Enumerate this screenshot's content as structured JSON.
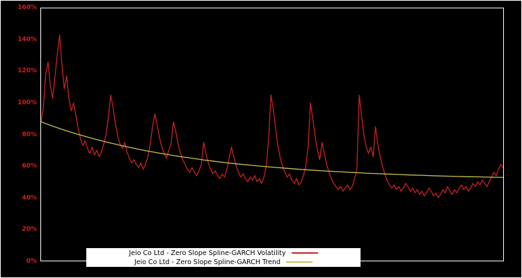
{
  "colors": {
    "background": "#000000",
    "frame": "#ffffff",
    "axis_label": "#cc2222",
    "volatility_line": "#cc2222",
    "trend_line": "#c8c050",
    "legend_bg": "#ffffff",
    "legend_text": "#000000"
  },
  "axis": {
    "y_ticks": [
      {
        "value": 0,
        "label": "0%"
      },
      {
        "value": 20,
        "label": "20%"
      },
      {
        "value": 40,
        "label": "40%"
      },
      {
        "value": 60,
        "label": "60%"
      },
      {
        "value": 80,
        "label": "80%"
      },
      {
        "value": 100,
        "label": "100%"
      },
      {
        "value": 120,
        "label": "120%"
      },
      {
        "value": 140,
        "label": "140%"
      },
      {
        "value": 160,
        "label": "160%"
      }
    ]
  },
  "legend": {
    "items": [
      {
        "label": "Jeio Co Ltd - Zero Slope Spline-GARCH Volatility",
        "color": "#cc2222"
      },
      {
        "label": "Jeio Co Ltd - Zero Slope Spline-GARCH Trend",
        "color": "#c8c050"
      }
    ]
  },
  "chart_data": {
    "type": "line",
    "title": "",
    "xlabel": "",
    "ylabel": "",
    "ylim": [
      0,
      160
    ],
    "y_tick_labels": [
      "0%",
      "20%",
      "40%",
      "60%",
      "80%",
      "100%",
      "120%",
      "140%",
      "160%"
    ],
    "grid": false,
    "legend_position": "bottom-left-inside",
    "series": [
      {
        "name": "Jeio Co Ltd - Zero Slope Spline-GARCH Volatility",
        "color": "#cc2222",
        "unit": "%",
        "values": [
          88,
          97,
          118,
          126,
          111,
          103,
          117,
          131,
          143,
          124,
          109,
          117,
          103,
          95,
          100,
          92,
          84,
          77,
          73,
          76,
          71,
          68,
          72,
          67,
          70,
          66,
          69,
          74,
          80,
          91,
          105,
          97,
          87,
          79,
          74,
          71,
          75,
          69,
          65,
          62,
          64,
          61,
          59,
          62,
          58,
          61,
          66,
          74,
          85,
          93,
          86,
          78,
          72,
          68,
          65,
          70,
          74,
          88,
          82,
          74,
          68,
          64,
          61,
          58,
          56,
          59,
          56,
          54,
          57,
          61,
          75,
          68,
          62,
          58,
          55,
          57,
          54,
          52,
          55,
          53,
          58,
          65,
          72,
          66,
          60,
          56,
          53,
          55,
          52,
          50,
          53,
          51,
          54,
          50,
          52,
          49,
          53,
          60,
          78,
          105,
          96,
          84,
          73,
          65,
          60,
          56,
          53,
          55,
          51,
          49,
          52,
          48,
          50,
          54,
          60,
          72,
          100,
          90,
          79,
          70,
          64,
          75,
          68,
          61,
          56,
          52,
          49,
          47,
          45,
          47,
          44,
          46,
          48,
          45,
          47,
          52,
          58,
          105,
          92,
          80,
          72,
          68,
          72,
          66,
          85,
          74,
          66,
          60,
          55,
          51,
          48,
          46,
          48,
          45,
          47,
          44,
          46,
          49,
          47,
          44,
          46,
          43,
          45,
          42,
          44,
          41,
          43,
          46,
          44,
          41,
          43,
          40,
          42,
          45,
          43,
          47,
          44,
          42,
          45,
          43,
          46,
          48,
          45,
          47,
          44,
          46,
          49,
          47,
          50,
          48,
          51,
          49,
          47,
          50,
          53,
          56,
          54,
          58,
          61,
          59
        ]
      },
      {
        "name": "Jeio Co Ltd - Zero Slope Spline-GARCH Trend",
        "color": "#c8c050",
        "unit": "%",
        "values": [
          88.0,
          85.3,
          82.8,
          80.5,
          78.4,
          76.4,
          74.6,
          72.9,
          71.3,
          69.8,
          68.5,
          67.2,
          66.0,
          65.0,
          63.9,
          63.0,
          62.1,
          61.3,
          60.6,
          59.9,
          59.3,
          58.7,
          58.1,
          57.6,
          57.1,
          56.7,
          56.3,
          55.9,
          55.5,
          55.2,
          54.9,
          54.6,
          54.3,
          54.1,
          53.8,
          53.6,
          53.4,
          53.2,
          53.1,
          52.9,
          52.8
        ]
      }
    ]
  }
}
